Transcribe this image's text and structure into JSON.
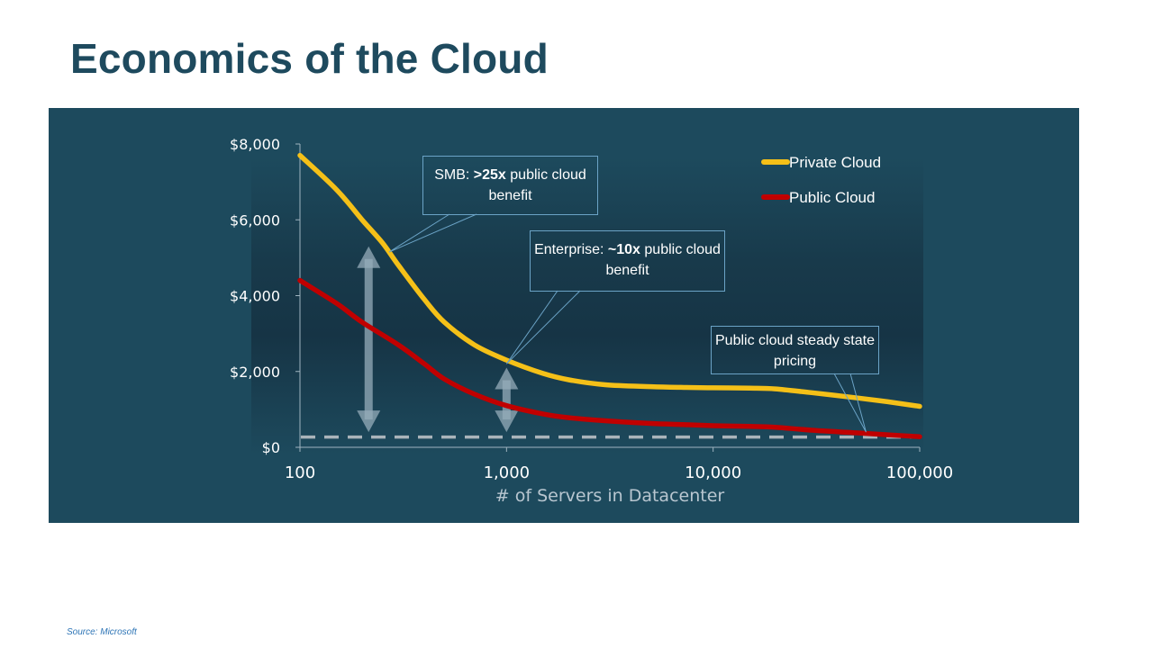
{
  "slide": {
    "title": "Economics of the Cloud",
    "source": "Source: Microsoft"
  },
  "colors": {
    "private_cloud": "#f5c018",
    "public_cloud": "#c00000",
    "panel_background": "#1d4a5d",
    "title": "#1e4a5e"
  },
  "chart_data": {
    "type": "line",
    "xlabel": "# of Servers in Datacenter",
    "ylabel": "",
    "x_scale": "log",
    "xlim": [
      100,
      100000
    ],
    "ylim": [
      0,
      8000
    ],
    "x_ticks": [
      100,
      1000,
      10000,
      100000
    ],
    "x_tick_labels": [
      "100",
      "1,000",
      "10,000",
      "100,000"
    ],
    "y_ticks": [
      0,
      2000,
      4000,
      6000,
      8000
    ],
    "y_tick_labels": [
      "$0",
      "$2,000",
      "$4,000",
      "$6,000",
      "$8,000"
    ],
    "grid": false,
    "legend_position": "top-right",
    "series": [
      {
        "name": "Private Cloud",
        "color": "#f5c018",
        "points": [
          [
            100,
            7700
          ],
          [
            150,
            6800
          ],
          [
            200,
            6000
          ],
          [
            250,
            5400
          ],
          [
            300,
            4800
          ],
          [
            400,
            3900
          ],
          [
            500,
            3300
          ],
          [
            700,
            2700
          ],
          [
            1000,
            2300
          ],
          [
            1500,
            1950
          ],
          [
            2000,
            1780
          ],
          [
            3000,
            1650
          ],
          [
            5000,
            1600
          ],
          [
            7000,
            1580
          ],
          [
            10000,
            1570
          ],
          [
            15000,
            1560
          ],
          [
            20000,
            1540
          ],
          [
            30000,
            1440
          ],
          [
            50000,
            1300
          ],
          [
            70000,
            1200
          ],
          [
            100000,
            1080
          ]
        ]
      },
      {
        "name": "Public Cloud",
        "color": "#c00000",
        "points": [
          [
            100,
            4400
          ],
          [
            150,
            3800
          ],
          [
            200,
            3300
          ],
          [
            300,
            2700
          ],
          [
            400,
            2200
          ],
          [
            500,
            1800
          ],
          [
            700,
            1400
          ],
          [
            1000,
            1100
          ],
          [
            1500,
            880
          ],
          [
            2000,
            780
          ],
          [
            3000,
            700
          ],
          [
            5000,
            630
          ],
          [
            7000,
            600
          ],
          [
            10000,
            570
          ],
          [
            15000,
            550
          ],
          [
            20000,
            530
          ],
          [
            30000,
            450
          ],
          [
            50000,
            380
          ],
          [
            70000,
            330
          ],
          [
            100000,
            280
          ]
        ]
      }
    ],
    "reference_line": {
      "label": "Public cloud steady state pricing",
      "y": 270,
      "style": "dashed"
    },
    "arrows": [
      {
        "x": 215,
        "y_from": 400,
        "y_to": 5300
      },
      {
        "x": 1000,
        "y_from": 400,
        "y_to": 2100
      }
    ],
    "annotations": {
      "smb": {
        "prefix": "SMB: ",
        "bold": ">25x",
        "suffix": " public cloud benefit",
        "anchor_x": 270,
        "anchor_y": 5150
      },
      "enterprise": {
        "prefix": "Enterprise:  ",
        "bold": "~10x",
        "suffix": " public cloud benefit",
        "anchor_x": 1000,
        "anchor_y": 2200
      },
      "public": {
        "text": "Public cloud steady state pricing",
        "anchor_x": 55000,
        "anchor_y": 400
      }
    }
  }
}
